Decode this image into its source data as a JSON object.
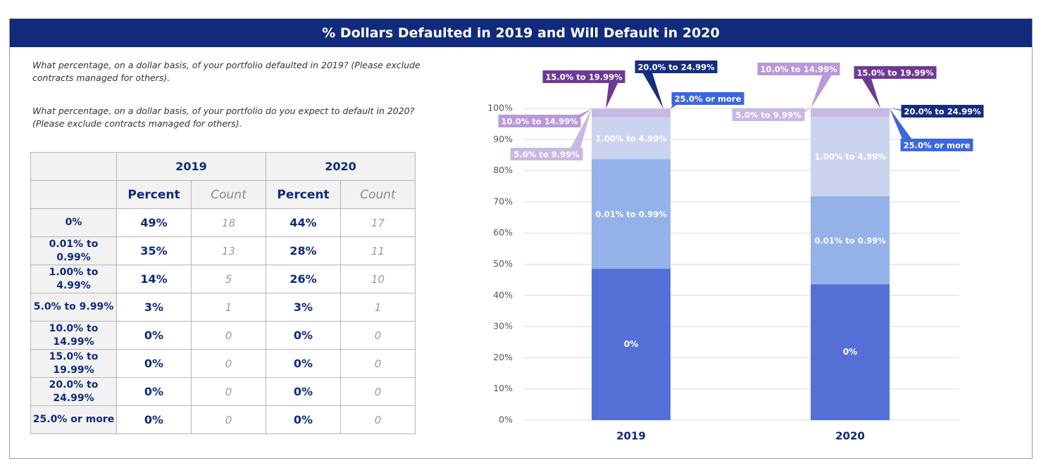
{
  "title": "% Dollars Defaulted in 2019 and Will Default in 2020",
  "questions": [
    "What percentage, on a dollar basis, of your portfolio defaulted in 2019? (Please exclude contracts managed for others).",
    "What percentage, on a dollar basis, of your portfolio do you expect to default in 2020? (Please exclude contracts managed for others)."
  ],
  "table": {
    "years": [
      "2019",
      "2020"
    ],
    "col_percent": "Percent",
    "col_count": "Count",
    "rows": [
      {
        "label": "0%",
        "p2019": "49%",
        "c2019": "18",
        "p2020": "44%",
        "c2020": "17"
      },
      {
        "label": "0.01% to 0.99%",
        "p2019": "35%",
        "c2019": "13",
        "p2020": "28%",
        "c2020": "11"
      },
      {
        "label": "1.00% to 4.99%",
        "p2019": "14%",
        "c2019": "5",
        "p2020": "26%",
        "c2020": "10"
      },
      {
        "label": "5.0% to 9.99%",
        "p2019": "3%",
        "c2019": "1",
        "p2020": "3%",
        "c2020": "1"
      },
      {
        "label": "10.0% to 14.99%",
        "p2019": "0%",
        "c2019": "0",
        "p2020": "0%",
        "c2020": "0"
      },
      {
        "label": "15.0% to 19.99%",
        "p2019": "0%",
        "c2019": "0",
        "p2020": "0%",
        "c2020": "0"
      },
      {
        "label": "20.0% to 24.99%",
        "p2019": "0%",
        "c2019": "0",
        "p2020": "0%",
        "c2020": "0"
      },
      {
        "label": "25.0% or more",
        "p2019": "0%",
        "c2019": "0",
        "p2020": "0%",
        "c2020": "0"
      }
    ]
  },
  "chart_data": {
    "type": "bar",
    "stacked": true,
    "categories": [
      "2019",
      "2020"
    ],
    "ylim": [
      0,
      100
    ],
    "ytick_values": [
      0,
      10,
      20,
      30,
      40,
      50,
      60,
      70,
      80,
      90,
      100
    ],
    "ytick_labels": [
      "0%",
      "10%",
      "20%",
      "30%",
      "40%",
      "50%",
      "60%",
      "70%",
      "80%",
      "90%",
      "100%"
    ],
    "grid": true,
    "series": [
      {
        "name": "0%",
        "values": [
          48.6,
          43.6
        ],
        "color": "#5470d6",
        "label_color": "#ffffff",
        "label_bg": ""
      },
      {
        "name": "0.01% to 0.99%",
        "values": [
          35.1,
          28.2
        ],
        "color": "#94b2e8",
        "label_color": "#ffffff",
        "label_bg": "#94b2e8"
      },
      {
        "name": "1.00% to 4.99%",
        "values": [
          13.5,
          25.6
        ],
        "color": "#ccd3ee",
        "label_color": "#ffffff",
        "label_bg": "#ccd3ee"
      },
      {
        "name": "5.0% to 9.99%",
        "values": [
          2.7,
          2.6
        ],
        "color": "#c9b8e3",
        "label_color": "#ffffff",
        "label_bg": "#c9b8e3"
      },
      {
        "name": "10.0% to 14.99%",
        "values": [
          0,
          0
        ],
        "color": "#b999d9",
        "label_color": "#ffffff",
        "label_bg": "#b999d9"
      },
      {
        "name": "15.0% to 19.99%",
        "values": [
          0,
          0
        ],
        "color": "#6d3a93",
        "label_color": "#ffffff",
        "label_bg": "#6d3a93"
      },
      {
        "name": "20.0% to 24.99%",
        "values": [
          0,
          0
        ],
        "color": "#142d7f",
        "label_color": "#ffffff",
        "label_bg": "#142d7f"
      },
      {
        "name": "25.0% or more",
        "values": [
          0,
          0
        ],
        "color": "#3b67df",
        "label_color": "#ffffff",
        "label_bg": "#3b67df"
      }
    ]
  }
}
